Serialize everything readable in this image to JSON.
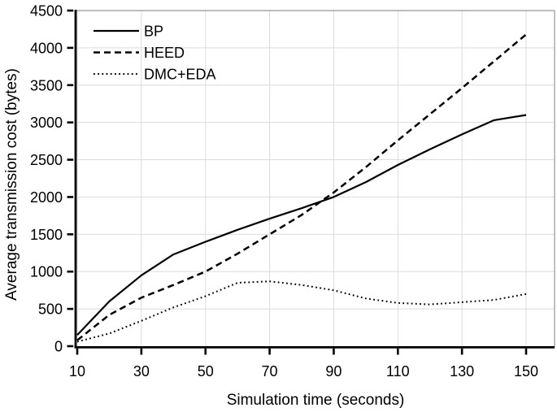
{
  "chart_data": {
    "type": "line",
    "title": "",
    "xlabel": "Simulation time (seconds)",
    "ylabel": "Average transmission cost (bytes)",
    "x": [
      10,
      20,
      30,
      40,
      50,
      60,
      70,
      80,
      90,
      100,
      110,
      120,
      130,
      140,
      150
    ],
    "series": [
      {
        "name": "BP",
        "style": "solid",
        "color": "#000000",
        "values": [
          150,
          600,
          950,
          1230,
          1400,
          1560,
          1710,
          1850,
          2000,
          2200,
          2430,
          2640,
          2840,
          3030,
          3100
        ]
      },
      {
        "name": "HEED",
        "style": "dashed",
        "color": "#000000",
        "values": [
          80,
          420,
          650,
          820,
          1000,
          1240,
          1500,
          1760,
          2060,
          2400,
          2760,
          3110,
          3460,
          3820,
          4180
        ]
      },
      {
        "name": "DMC+EDA",
        "style": "dotted",
        "color": "#000000",
        "values": [
          60,
          170,
          340,
          520,
          670,
          850,
          870,
          820,
          750,
          640,
          580,
          560,
          590,
          620,
          700
        ]
      }
    ],
    "x_ticks": [
      10,
      30,
      50,
      70,
      90,
      110,
      130,
      150
    ],
    "y_ticks": [
      0,
      500,
      1000,
      1500,
      2000,
      2500,
      3000,
      3500,
      4000,
      4500
    ],
    "xlim": [
      10,
      150
    ],
    "ylim": [
      0,
      4500
    ],
    "grid": "on",
    "legend_position": "top-left"
  },
  "colors": {
    "background": "#ffffff",
    "axis": "#000000",
    "grid": "#dcdcdc",
    "border": "#a6a6a6",
    "text": "#000000"
  }
}
